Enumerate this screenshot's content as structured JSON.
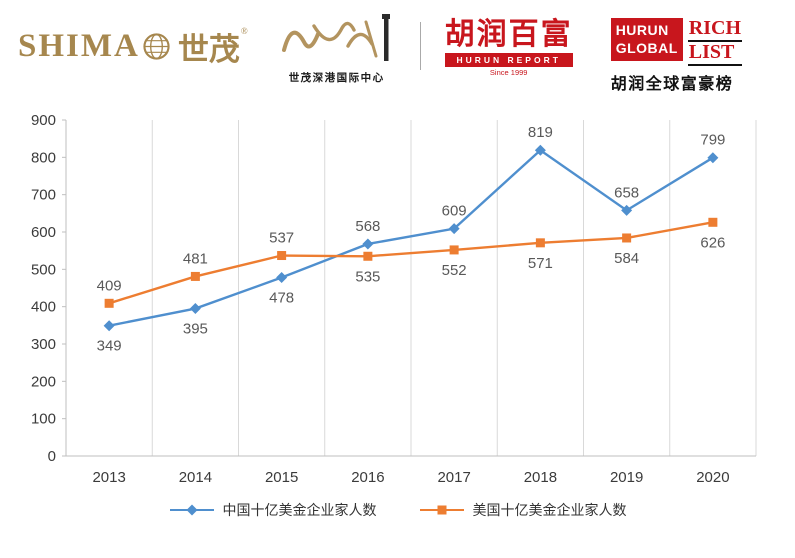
{
  "header": {
    "shimao": {
      "latin": "SHIMA",
      "cn": "世茂",
      "reg": "®"
    },
    "center": {
      "caption": "世茂深港国际中心"
    },
    "hurun": {
      "cn": "胡润百富",
      "bar": "HURUN REPORT",
      "since": "Since 1999"
    },
    "richlist": {
      "box_line1": "HURUN",
      "box_line2": "GLOBAL",
      "word1": "RICH",
      "word2": "LIST",
      "cn": "胡润全球富豪榜"
    }
  },
  "chart_data": {
    "type": "line",
    "categories": [
      "2013",
      "2014",
      "2015",
      "2016",
      "2017",
      "2018",
      "2019",
      "2020"
    ],
    "series": [
      {
        "name": "中国十亿美金企业家人数",
        "color": "#4F8FCE",
        "marker": "diamond",
        "values": [
          349,
          395,
          478,
          568,
          609,
          819,
          658,
          799
        ]
      },
      {
        "name": "美国十亿美金企业家人数",
        "color": "#ED7D31",
        "marker": "square",
        "values": [
          409,
          481,
          537,
          535,
          552,
          571,
          584,
          626
        ]
      }
    ],
    "ylim": [
      0,
      900
    ],
    "ytick_step": 100,
    "grid": "vertical-only",
    "legend_position": "bottom",
    "axis_color": "#BFBFBF",
    "gridline_color": "#D9D9D9",
    "label_color": "#595959",
    "axis_label_color": "#3b3b3b"
  }
}
